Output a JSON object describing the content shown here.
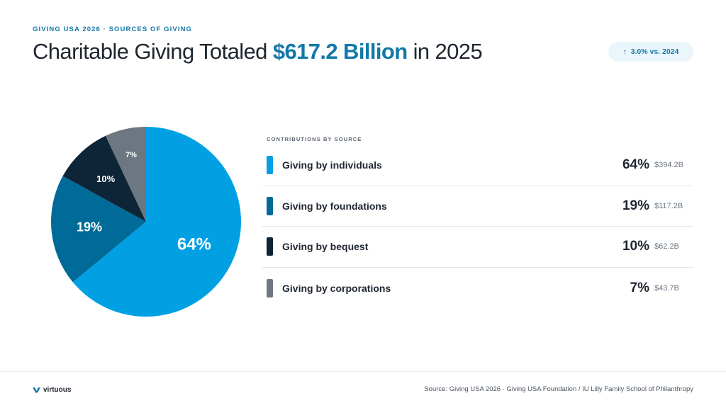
{
  "header": {
    "eyebrow": "GIVING USA 2026 · SOURCES OF GIVING",
    "title_prefix": "Charitable Giving Totaled ",
    "title_highlight": "$617.2 Billion",
    "title_suffix": " in 2025",
    "badge_arrow": "↑",
    "badge_text": "3.0% vs. 2024"
  },
  "colors": {
    "accent": "#1378a8",
    "individuals": "#00a0e3",
    "foundations": "#006a99",
    "bequest": "#0d2536",
    "corporations": "#6d7781"
  },
  "chart_data": {
    "type": "pie",
    "slices": [
      {
        "label": "Giving by individuals",
        "value": 64,
        "display": "64%",
        "amount": "$394.2B",
        "color": "#00a0e3"
      },
      {
        "label": "Giving by foundations",
        "value": 19,
        "display": "19%",
        "amount": "$117.2B",
        "color": "#006a99"
      },
      {
        "label": "Giving by bequest",
        "value": 10,
        "display": "10%",
        "amount": "$62.2B",
        "color": "#0d2536"
      },
      {
        "label": "Giving by corporations",
        "value": 7,
        "display": "7%",
        "amount": "$43.7B",
        "color": "#6d7781"
      }
    ],
    "start": "12 o'clock",
    "direction": "clockwise"
  },
  "legend": {
    "title": "CONTRIBUTIONS BY SOURCE"
  },
  "footer": {
    "logo_icon": "virtuous-v-icon",
    "logo_text": "virtuous",
    "source": "Source: Giving USA 2026 · Giving USA Foundation / IU Lilly Family School of Philanthropy"
  }
}
